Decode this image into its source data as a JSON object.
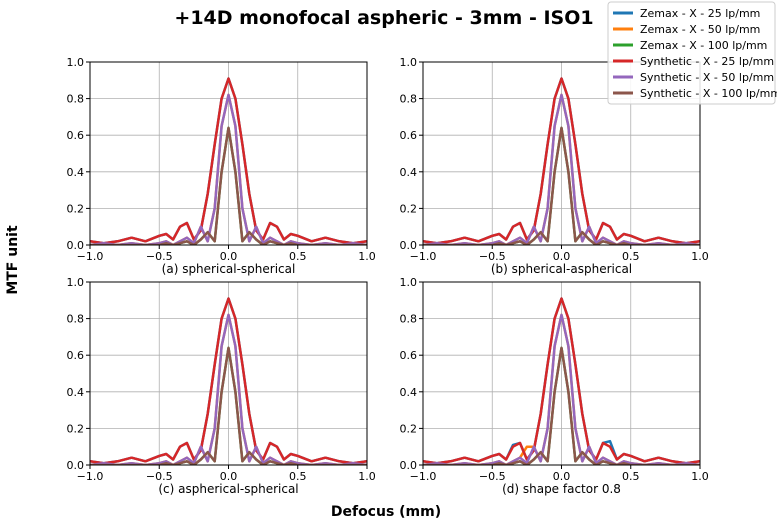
{
  "figure": {
    "title": "+14D monofocal aspheric - 3mm - ISO1",
    "xlabel": "Defocus (mm)",
    "ylabel": "MTF unit"
  },
  "legend": {
    "placement": "top-right",
    "entries": [
      {
        "label": "Zemax - X - 25 lp/mm",
        "color": "#1f77b4"
      },
      {
        "label": "Zemax - X - 50 lp/mm",
        "color": "#ff7f0e"
      },
      {
        "label": "Zemax - X - 100 lp/mm",
        "color": "#2ca02c"
      },
      {
        "label": "Synthetic - X - 25 lp/mm",
        "color": "#d62728"
      },
      {
        "label": "Synthetic - X - 50 lp/mm",
        "color": "#9467bd"
      },
      {
        "label": "Synthetic - X - 100 lp/mm",
        "color": "#8c564b"
      }
    ]
  },
  "chart_data": [
    {
      "type": "line",
      "subtitle": "(a) spherical-spherical",
      "xlim": [
        -1.0,
        1.0
      ],
      "ylim": [
        0.0,
        1.0
      ],
      "xticks": [
        "−1.0",
        "−0.5",
        "0.0",
        "0.5",
        "1.0"
      ],
      "yticks": [
        "0.0",
        "0.2",
        "0.4",
        "0.6",
        "0.8",
        "1.0"
      ],
      "grid": true,
      "x": [
        -1.0,
        -0.9,
        -0.8,
        -0.7,
        -0.6,
        -0.5,
        -0.45,
        -0.4,
        -0.35,
        -0.3,
        -0.25,
        -0.2,
        -0.15,
        -0.1,
        -0.05,
        0.0,
        0.05,
        0.1,
        0.15,
        0.2,
        0.25,
        0.3,
        0.35,
        0.4,
        0.45,
        0.5,
        0.6,
        0.7,
        0.8,
        0.9,
        1.0
      ],
      "series": [
        {
          "name": "Zemax - X - 25 lp/mm",
          "values": [
            0.02,
            0.01,
            0.02,
            0.04,
            0.02,
            0.05,
            0.06,
            0.03,
            0.1,
            0.12,
            0.03,
            0.08,
            0.28,
            0.55,
            0.8,
            0.91,
            0.8,
            0.55,
            0.28,
            0.08,
            0.03,
            0.12,
            0.1,
            0.03,
            0.06,
            0.05,
            0.02,
            0.04,
            0.02,
            0.01,
            0.02
          ]
        },
        {
          "name": "Zemax - X - 50 lp/mm",
          "values": [
            0.0,
            0.01,
            0.0,
            0.01,
            0.0,
            0.01,
            0.02,
            0.0,
            0.02,
            0.04,
            0.01,
            0.1,
            0.02,
            0.2,
            0.65,
            0.82,
            0.65,
            0.2,
            0.02,
            0.1,
            0.01,
            0.04,
            0.02,
            0.0,
            0.02,
            0.01,
            0.0,
            0.01,
            0.0,
            0.01,
            0.0
          ]
        },
        {
          "name": "Zemax - X - 100 lp/mm",
          "values": [
            0.0,
            0.0,
            0.0,
            0.0,
            0.0,
            0.0,
            0.01,
            0.0,
            0.01,
            0.02,
            0.0,
            0.03,
            0.07,
            0.02,
            0.4,
            0.64,
            0.4,
            0.02,
            0.07,
            0.03,
            0.0,
            0.02,
            0.01,
            0.0,
            0.01,
            0.0,
            0.0,
            0.0,
            0.0,
            0.0,
            0.0
          ]
        },
        {
          "name": "Synthetic - X - 25 lp/mm",
          "values": [
            0.02,
            0.01,
            0.02,
            0.04,
            0.02,
            0.05,
            0.06,
            0.03,
            0.1,
            0.12,
            0.03,
            0.08,
            0.28,
            0.55,
            0.8,
            0.91,
            0.8,
            0.55,
            0.28,
            0.08,
            0.03,
            0.12,
            0.1,
            0.03,
            0.06,
            0.05,
            0.02,
            0.04,
            0.02,
            0.01,
            0.02
          ]
        },
        {
          "name": "Synthetic - X - 50 lp/mm",
          "values": [
            0.0,
            0.01,
            0.0,
            0.01,
            0.0,
            0.01,
            0.02,
            0.0,
            0.02,
            0.04,
            0.01,
            0.1,
            0.02,
            0.2,
            0.65,
            0.82,
            0.65,
            0.2,
            0.02,
            0.1,
            0.01,
            0.04,
            0.02,
            0.0,
            0.02,
            0.01,
            0.0,
            0.01,
            0.0,
            0.01,
            0.0
          ]
        },
        {
          "name": "Synthetic - X - 100 lp/mm",
          "values": [
            0.0,
            0.0,
            0.0,
            0.0,
            0.0,
            0.0,
            0.01,
            0.0,
            0.01,
            0.02,
            0.0,
            0.03,
            0.07,
            0.02,
            0.4,
            0.64,
            0.4,
            0.02,
            0.07,
            0.03,
            0.0,
            0.02,
            0.01,
            0.0,
            0.01,
            0.0,
            0.0,
            0.0,
            0.0,
            0.0,
            0.0
          ]
        }
      ]
    },
    {
      "type": "line",
      "subtitle": "(b) spherical-aspherical",
      "xlim": [
        -1.0,
        1.0
      ],
      "ylim": [
        0.0,
        1.0
      ],
      "xticks": [
        "−1.0",
        "−0.5",
        "0.0",
        "0.5",
        "1.0"
      ],
      "yticks": [
        "0.0",
        "0.2",
        "0.4",
        "0.6",
        "0.8",
        "1.0"
      ],
      "grid": true,
      "x": [
        -1.0,
        -0.9,
        -0.8,
        -0.7,
        -0.6,
        -0.5,
        -0.45,
        -0.4,
        -0.35,
        -0.3,
        -0.25,
        -0.2,
        -0.15,
        -0.1,
        -0.05,
        0.0,
        0.05,
        0.1,
        0.15,
        0.2,
        0.25,
        0.3,
        0.35,
        0.4,
        0.45,
        0.5,
        0.6,
        0.7,
        0.8,
        0.9,
        1.0
      ],
      "series": [
        {
          "name": "Zemax - X - 25 lp/mm",
          "values": [
            0.02,
            0.01,
            0.02,
            0.04,
            0.02,
            0.05,
            0.06,
            0.03,
            0.1,
            0.12,
            0.03,
            0.08,
            0.28,
            0.55,
            0.8,
            0.91,
            0.8,
            0.55,
            0.28,
            0.08,
            0.03,
            0.12,
            0.1,
            0.03,
            0.06,
            0.05,
            0.02,
            0.04,
            0.02,
            0.01,
            0.02
          ]
        },
        {
          "name": "Zemax - X - 50 lp/mm",
          "values": [
            0.0,
            0.01,
            0.0,
            0.01,
            0.0,
            0.01,
            0.02,
            0.0,
            0.02,
            0.04,
            0.01,
            0.1,
            0.02,
            0.2,
            0.65,
            0.82,
            0.65,
            0.2,
            0.02,
            0.1,
            0.01,
            0.04,
            0.02,
            0.0,
            0.02,
            0.01,
            0.0,
            0.01,
            0.0,
            0.01,
            0.0
          ]
        },
        {
          "name": "Zemax - X - 100 lp/mm",
          "values": [
            0.0,
            0.0,
            0.0,
            0.0,
            0.0,
            0.0,
            0.01,
            0.0,
            0.01,
            0.02,
            0.0,
            0.03,
            0.07,
            0.02,
            0.4,
            0.64,
            0.4,
            0.02,
            0.07,
            0.03,
            0.0,
            0.02,
            0.01,
            0.0,
            0.01,
            0.0,
            0.0,
            0.0,
            0.0,
            0.0,
            0.0
          ]
        },
        {
          "name": "Synthetic - X - 25 lp/mm",
          "values": [
            0.02,
            0.01,
            0.02,
            0.04,
            0.02,
            0.05,
            0.06,
            0.03,
            0.1,
            0.12,
            0.03,
            0.08,
            0.28,
            0.55,
            0.8,
            0.91,
            0.8,
            0.55,
            0.28,
            0.08,
            0.03,
            0.12,
            0.1,
            0.03,
            0.06,
            0.05,
            0.02,
            0.04,
            0.02,
            0.01,
            0.02
          ]
        },
        {
          "name": "Synthetic - X - 50 lp/mm",
          "values": [
            0.0,
            0.01,
            0.0,
            0.01,
            0.0,
            0.01,
            0.02,
            0.0,
            0.02,
            0.04,
            0.01,
            0.1,
            0.02,
            0.2,
            0.65,
            0.82,
            0.65,
            0.2,
            0.02,
            0.1,
            0.01,
            0.04,
            0.02,
            0.0,
            0.02,
            0.01,
            0.0,
            0.01,
            0.0,
            0.01,
            0.0
          ]
        },
        {
          "name": "Synthetic - X - 100 lp/mm",
          "values": [
            0.0,
            0.0,
            0.0,
            0.0,
            0.0,
            0.0,
            0.01,
            0.0,
            0.01,
            0.02,
            0.0,
            0.03,
            0.07,
            0.02,
            0.4,
            0.64,
            0.4,
            0.02,
            0.07,
            0.03,
            0.0,
            0.02,
            0.01,
            0.0,
            0.01,
            0.0,
            0.0,
            0.0,
            0.0,
            0.0,
            0.0
          ]
        }
      ]
    },
    {
      "type": "line",
      "subtitle": "(c) aspherical-spherical",
      "xlim": [
        -1.0,
        1.0
      ],
      "ylim": [
        0.0,
        1.0
      ],
      "xticks": [
        "−1.0",
        "−0.5",
        "0.0",
        "0.5",
        "1.0"
      ],
      "yticks": [
        "0.0",
        "0.2",
        "0.4",
        "0.6",
        "0.8",
        "1.0"
      ],
      "grid": true,
      "x": [
        -1.0,
        -0.9,
        -0.8,
        -0.7,
        -0.6,
        -0.5,
        -0.45,
        -0.4,
        -0.35,
        -0.3,
        -0.25,
        -0.2,
        -0.15,
        -0.1,
        -0.05,
        0.0,
        0.05,
        0.1,
        0.15,
        0.2,
        0.25,
        0.3,
        0.35,
        0.4,
        0.45,
        0.5,
        0.6,
        0.7,
        0.8,
        0.9,
        1.0
      ],
      "series": [
        {
          "name": "Zemax - X - 25 lp/mm",
          "values": [
            0.02,
            0.01,
            0.02,
            0.04,
            0.02,
            0.05,
            0.06,
            0.03,
            0.1,
            0.12,
            0.03,
            0.08,
            0.28,
            0.55,
            0.8,
            0.91,
            0.8,
            0.55,
            0.28,
            0.08,
            0.03,
            0.12,
            0.1,
            0.03,
            0.06,
            0.05,
            0.02,
            0.04,
            0.02,
            0.01,
            0.02
          ]
        },
        {
          "name": "Zemax - X - 50 lp/mm",
          "values": [
            0.0,
            0.01,
            0.0,
            0.01,
            0.0,
            0.01,
            0.02,
            0.0,
            0.02,
            0.04,
            0.01,
            0.1,
            0.02,
            0.2,
            0.65,
            0.82,
            0.65,
            0.2,
            0.02,
            0.1,
            0.01,
            0.04,
            0.02,
            0.0,
            0.02,
            0.01,
            0.0,
            0.01,
            0.0,
            0.01,
            0.0
          ]
        },
        {
          "name": "Zemax - X - 100 lp/mm",
          "values": [
            0.0,
            0.0,
            0.0,
            0.0,
            0.0,
            0.0,
            0.01,
            0.0,
            0.01,
            0.02,
            0.0,
            0.03,
            0.07,
            0.02,
            0.4,
            0.64,
            0.4,
            0.02,
            0.07,
            0.03,
            0.0,
            0.02,
            0.01,
            0.0,
            0.01,
            0.0,
            0.0,
            0.0,
            0.0,
            0.0,
            0.0
          ]
        },
        {
          "name": "Synthetic - X - 25 lp/mm",
          "values": [
            0.02,
            0.01,
            0.02,
            0.04,
            0.02,
            0.05,
            0.06,
            0.03,
            0.1,
            0.12,
            0.03,
            0.08,
            0.28,
            0.55,
            0.8,
            0.91,
            0.8,
            0.55,
            0.28,
            0.08,
            0.03,
            0.12,
            0.1,
            0.03,
            0.06,
            0.05,
            0.02,
            0.04,
            0.02,
            0.01,
            0.02
          ]
        },
        {
          "name": "Synthetic - X - 50 lp/mm",
          "values": [
            0.0,
            0.01,
            0.0,
            0.01,
            0.0,
            0.01,
            0.02,
            0.0,
            0.02,
            0.04,
            0.01,
            0.1,
            0.02,
            0.2,
            0.65,
            0.82,
            0.65,
            0.2,
            0.02,
            0.1,
            0.01,
            0.04,
            0.02,
            0.0,
            0.02,
            0.01,
            0.0,
            0.01,
            0.0,
            0.01,
            0.0
          ]
        },
        {
          "name": "Synthetic - X - 100 lp/mm",
          "values": [
            0.0,
            0.0,
            0.0,
            0.0,
            0.0,
            0.0,
            0.01,
            0.0,
            0.01,
            0.02,
            0.0,
            0.03,
            0.07,
            0.02,
            0.4,
            0.64,
            0.4,
            0.02,
            0.07,
            0.03,
            0.0,
            0.02,
            0.01,
            0.0,
            0.01,
            0.0,
            0.0,
            0.0,
            0.0,
            0.0,
            0.0
          ]
        }
      ]
    },
    {
      "type": "line",
      "subtitle": "(d) shape factor 0.8",
      "xlim": [
        -1.0,
        1.0
      ],
      "ylim": [
        0.0,
        1.0
      ],
      "xticks": [
        "−1.0",
        "−0.5",
        "0.0",
        "0.5",
        "1.0"
      ],
      "yticks": [
        "0.0",
        "0.2",
        "0.4",
        "0.6",
        "0.8",
        "1.0"
      ],
      "grid": true,
      "x": [
        -1.0,
        -0.9,
        -0.8,
        -0.7,
        -0.6,
        -0.5,
        -0.45,
        -0.4,
        -0.35,
        -0.3,
        -0.25,
        -0.2,
        -0.15,
        -0.1,
        -0.05,
        0.0,
        0.05,
        0.1,
        0.15,
        0.2,
        0.25,
        0.3,
        0.35,
        0.4,
        0.45,
        0.5,
        0.6,
        0.7,
        0.8,
        0.9,
        1.0
      ],
      "series": [
        {
          "name": "Zemax - X - 25 lp/mm",
          "values": [
            0.02,
            0.01,
            0.02,
            0.04,
            0.02,
            0.05,
            0.06,
            0.03,
            0.11,
            0.12,
            0.03,
            0.08,
            0.28,
            0.55,
            0.8,
            0.91,
            0.8,
            0.55,
            0.28,
            0.08,
            0.03,
            0.12,
            0.13,
            0.03,
            0.06,
            0.05,
            0.02,
            0.04,
            0.02,
            0.01,
            0.02
          ]
        },
        {
          "name": "Zemax - X - 50 lp/mm",
          "values": [
            0.0,
            0.01,
            0.0,
            0.01,
            0.0,
            0.01,
            0.02,
            0.0,
            0.02,
            0.04,
            0.1,
            0.1,
            0.02,
            0.2,
            0.65,
            0.82,
            0.65,
            0.2,
            0.02,
            0.1,
            0.01,
            0.04,
            0.02,
            0.0,
            0.02,
            0.01,
            0.0,
            0.01,
            0.0,
            0.01,
            0.0
          ]
        },
        {
          "name": "Zemax - X - 100 lp/mm",
          "values": [
            0.0,
            0.0,
            0.0,
            0.0,
            0.0,
            0.0,
            0.01,
            0.0,
            0.01,
            0.02,
            0.0,
            0.03,
            0.07,
            0.02,
            0.4,
            0.64,
            0.4,
            0.02,
            0.07,
            0.03,
            0.0,
            0.02,
            0.01,
            0.0,
            0.01,
            0.0,
            0.0,
            0.0,
            0.0,
            0.0,
            0.0
          ]
        },
        {
          "name": "Synthetic - X - 25 lp/mm",
          "values": [
            0.02,
            0.01,
            0.02,
            0.04,
            0.02,
            0.05,
            0.06,
            0.03,
            0.1,
            0.12,
            0.03,
            0.08,
            0.28,
            0.55,
            0.8,
            0.91,
            0.8,
            0.55,
            0.28,
            0.08,
            0.03,
            0.12,
            0.1,
            0.03,
            0.06,
            0.05,
            0.02,
            0.04,
            0.02,
            0.01,
            0.02
          ]
        },
        {
          "name": "Synthetic - X - 50 lp/mm",
          "values": [
            0.0,
            0.01,
            0.0,
            0.01,
            0.0,
            0.01,
            0.02,
            0.0,
            0.02,
            0.04,
            0.01,
            0.1,
            0.02,
            0.2,
            0.65,
            0.82,
            0.65,
            0.2,
            0.02,
            0.1,
            0.01,
            0.04,
            0.02,
            0.0,
            0.02,
            0.01,
            0.0,
            0.01,
            0.0,
            0.01,
            0.0
          ]
        },
        {
          "name": "Synthetic - X - 100 lp/mm",
          "values": [
            0.0,
            0.0,
            0.0,
            0.0,
            0.0,
            0.0,
            0.01,
            0.0,
            0.01,
            0.02,
            0.0,
            0.03,
            0.07,
            0.02,
            0.4,
            0.64,
            0.4,
            0.02,
            0.07,
            0.03,
            0.0,
            0.02,
            0.01,
            0.0,
            0.01,
            0.0,
            0.0,
            0.0,
            0.0,
            0.0,
            0.0
          ]
        }
      ]
    }
  ]
}
